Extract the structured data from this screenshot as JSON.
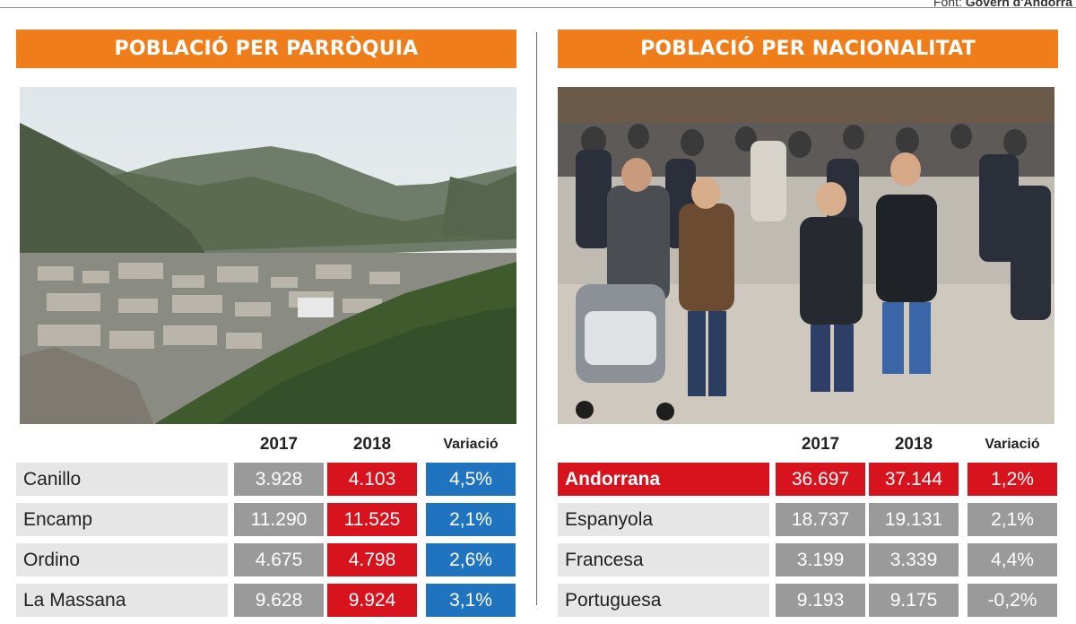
{
  "source": {
    "prefix": "Font: ",
    "name": "Govern d'Andorra"
  },
  "left": {
    "title": "POBLACIÓ PER PARRÒQUIA",
    "photo_subject": "valley-town-landscape-photo",
    "headers": {
      "y2017": "2017",
      "y2018": "2018",
      "var": "Variació"
    },
    "rows": [
      {
        "name": "Canillo",
        "v2017": "3.928",
        "v2018": "4.103",
        "var": "4,5%"
      },
      {
        "name": "Encamp",
        "v2017": "11.290",
        "v2018": "11.525",
        "var": "2,1%"
      },
      {
        "name": "Ordino",
        "v2017": "4.675",
        "v2018": "4.798",
        "var": "2,6%"
      },
      {
        "name": "La Massana",
        "v2017": "9.628",
        "v2018": "9.924",
        "var": "3,1%"
      }
    ]
  },
  "right": {
    "title": "POBLACIÓ PER NACIONALITAT",
    "photo_subject": "street-crowd-photo",
    "headers": {
      "y2017": "2017",
      "y2018": "2018",
      "var": "Variació"
    },
    "rows": [
      {
        "name": "Andorrana",
        "v2017": "36.697",
        "v2018": "37.144",
        "var": "1,2%"
      },
      {
        "name": "Espanyola",
        "v2017": "18.737",
        "v2018": "19.131",
        "var": "2,1%"
      },
      {
        "name": "Francesa",
        "v2017": "3.199",
        "v2018": "3.339",
        "var": "4,4%"
      },
      {
        "name": "Portuguesa",
        "v2017": "9.193",
        "v2018": "9.175",
        "var": "-0,2%"
      }
    ]
  },
  "colors": {
    "banner": "#ef7d1a",
    "year_2017": "#9a9a9a",
    "year_2018": "#d7141e",
    "variation": "#1f73bf",
    "label_bg": "#e6e6e6"
  }
}
